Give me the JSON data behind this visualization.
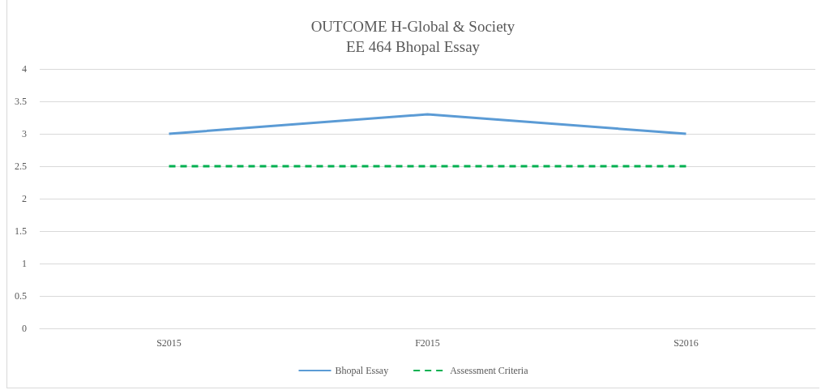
{
  "chart_data": {
    "type": "line",
    "title": "OUTCOME H-Global & Society",
    "subtitle": "EE 464 Bhopal Essay",
    "categories": [
      "S2015",
      "F2015",
      "S2016"
    ],
    "series": [
      {
        "name": "Bhopal Essay",
        "color": "#5b9bd5",
        "values": [
          3,
          3.3,
          3
        ],
        "line_style": "solid"
      },
      {
        "name": "Assessment Criteria",
        "color": "#00b050",
        "values": [
          2.5,
          2.5,
          2.5
        ],
        "line_style": "dashed"
      }
    ],
    "ylim": [
      0,
      4
    ],
    "yticks": [
      0,
      0.5,
      1,
      1.5,
      2,
      2.5,
      3,
      3.5,
      4
    ],
    "grid": "y",
    "legend": "bottom",
    "marker": "none"
  }
}
